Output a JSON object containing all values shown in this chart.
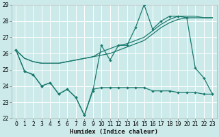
{
  "xlabel": "Humidex (Indice chaleur)",
  "xlim": [
    -0.5,
    23.5
  ],
  "ylim": [
    22,
    29
  ],
  "yticks": [
    22,
    23,
    24,
    25,
    26,
    27,
    28,
    29
  ],
  "xticks": [
    0,
    1,
    2,
    3,
    4,
    5,
    6,
    7,
    8,
    9,
    10,
    11,
    12,
    13,
    14,
    15,
    16,
    17,
    18,
    19,
    20,
    21,
    22,
    23
  ],
  "background_color": "#cceaea",
  "grid_color": "#b8d8d8",
  "line_color": "#1a7a6e",
  "series_upper": [
    26.2,
    24.9,
    24.7,
    24.0,
    24.2,
    23.5,
    23.8,
    23.3,
    22.2,
    23.7,
    26.5,
    25.6,
    26.5,
    26.5,
    27.6,
    29.0,
    27.5,
    28.0,
    28.3,
    28.3,
    28.2,
    25.1,
    24.5,
    23.5
  ],
  "series_lower": [
    26.2,
    24.9,
    24.7,
    24.0,
    24.2,
    23.5,
    23.8,
    23.3,
    22.2,
    23.8,
    23.9,
    23.9,
    23.9,
    23.9,
    23.9,
    23.9,
    23.7,
    23.7,
    23.7,
    23.6,
    23.6,
    23.6,
    23.5,
    23.5
  ],
  "series_trend1": [
    26.2,
    25.7,
    25.5,
    25.4,
    25.4,
    25.4,
    25.5,
    25.6,
    25.7,
    25.8,
    25.9,
    26.0,
    26.2,
    26.4,
    26.6,
    26.8,
    27.2,
    27.6,
    27.9,
    28.1,
    28.2,
    28.2,
    28.2,
    28.2
  ],
  "series_trend2": [
    26.2,
    25.7,
    25.5,
    25.4,
    25.4,
    25.4,
    25.5,
    25.6,
    25.7,
    25.8,
    26.1,
    26.3,
    26.5,
    26.6,
    26.8,
    27.0,
    27.4,
    27.8,
    28.1,
    28.3,
    28.3,
    28.3,
    28.2,
    28.2
  ],
  "xlabel_fontsize": 6.5,
  "tick_fontsize": 5.5
}
